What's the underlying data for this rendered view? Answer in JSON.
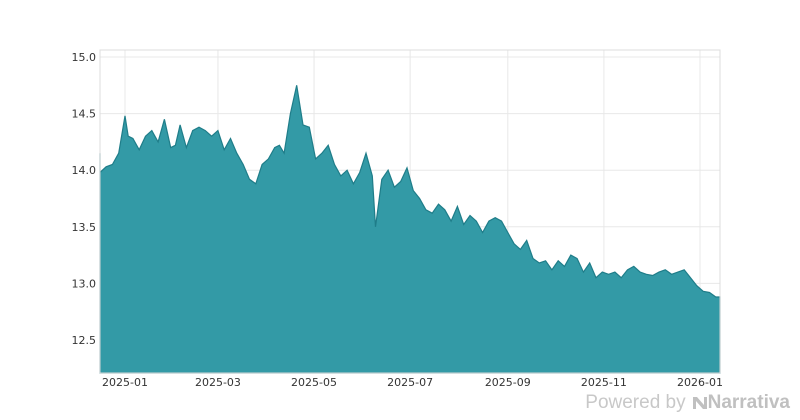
{
  "chart_data": {
    "type": "area",
    "title": "",
    "xlabel": "",
    "ylabel": "",
    "ylim": [
      12.2,
      15.05
    ],
    "grid": true,
    "legend": "none",
    "fill_color": "#339aa6",
    "line_color": "#1f7d89",
    "x_ticks": [
      "2025-01",
      "2025-03",
      "2025-05",
      "2025-07",
      "2025-09",
      "2025-11",
      "2026-01"
    ],
    "y_ticks": [
      "12.5",
      "13.0",
      "13.5",
      "14.0",
      "14.5",
      "15.0"
    ],
    "series": [
      {
        "name": "value",
        "x": [
          "2024-12-08",
          "2024-12-12",
          "2024-12-16",
          "2024-12-20",
          "2024-12-24",
          "2024-12-28",
          "2025-01-01",
          "2025-01-03",
          "2025-01-06",
          "2025-01-10",
          "2025-01-14",
          "2025-01-18",
          "2025-01-22",
          "2025-01-26",
          "2025-01-30",
          "2025-02-02",
          "2025-02-05",
          "2025-02-09",
          "2025-02-13",
          "2025-02-17",
          "2025-02-21",
          "2025-02-25",
          "2025-03-01",
          "2025-03-05",
          "2025-03-09",
          "2025-03-13",
          "2025-03-17",
          "2025-03-21",
          "2025-03-25",
          "2025-03-29",
          "2025-04-02",
          "2025-04-06",
          "2025-04-09",
          "2025-04-12",
          "2025-04-16",
          "2025-04-20",
          "2025-04-24",
          "2025-04-28",
          "2025-05-02",
          "2025-05-06",
          "2025-05-10",
          "2025-05-14",
          "2025-05-18",
          "2025-05-22",
          "2025-05-26",
          "2025-05-30",
          "2025-06-03",
          "2025-06-07",
          "2025-06-09",
          "2025-06-13",
          "2025-06-17",
          "2025-06-21",
          "2025-06-25",
          "2025-06-29",
          "2025-07-03",
          "2025-07-07",
          "2025-07-11",
          "2025-07-15",
          "2025-07-19",
          "2025-07-23",
          "2025-07-27",
          "2025-07-31",
          "2025-08-04",
          "2025-08-08",
          "2025-08-12",
          "2025-08-16",
          "2025-08-20",
          "2025-08-24",
          "2025-08-28",
          "2025-09-01",
          "2025-09-05",
          "2025-09-09",
          "2025-09-13",
          "2025-09-17",
          "2025-09-21",
          "2025-09-25",
          "2025-09-29",
          "2025-10-03",
          "2025-10-07",
          "2025-10-11",
          "2025-10-15",
          "2025-10-19",
          "2025-10-23",
          "2025-10-27",
          "2025-10-31",
          "2025-11-04",
          "2025-11-08",
          "2025-11-12",
          "2025-11-16",
          "2025-11-20",
          "2025-11-24",
          "2025-11-28",
          "2025-12-02",
          "2025-12-06",
          "2025-12-10",
          "2025-12-14",
          "2025-12-18",
          "2025-12-22",
          "2025-12-26",
          "2025-12-30",
          "2026-01-03",
          "2026-01-07",
          "2026-01-11"
        ],
        "values": [
          14.15,
          14.1,
          13.98,
          14.03,
          14.05,
          14.15,
          14.48,
          14.3,
          14.28,
          14.18,
          14.3,
          14.35,
          14.25,
          14.45,
          14.2,
          14.22,
          14.4,
          14.2,
          14.35,
          14.38,
          14.35,
          14.3,
          14.35,
          14.18,
          14.28,
          14.15,
          14.05,
          13.92,
          13.88,
          14.05,
          14.1,
          14.2,
          14.22,
          14.15,
          14.5,
          14.75,
          14.4,
          14.38,
          14.1,
          14.15,
          14.22,
          14.05,
          13.95,
          14.0,
          13.88,
          13.98,
          14.15,
          13.95,
          13.5,
          13.92,
          14.0,
          13.85,
          13.9,
          14.02,
          13.82,
          13.75,
          13.65,
          13.62,
          13.7,
          13.65,
          13.55,
          13.68,
          13.52,
          13.6,
          13.55,
          13.45,
          13.55,
          13.58,
          13.55,
          13.45,
          13.35,
          13.3,
          13.38,
          13.22,
          13.18,
          13.2,
          13.12,
          13.2,
          13.15,
          13.25,
          13.22,
          13.1,
          13.18,
          13.05,
          13.1,
          13.08,
          13.1,
          13.05,
          13.12,
          13.15,
          13.1,
          13.08,
          13.07,
          13.1,
          13.12,
          13.08,
          13.1,
          13.12,
          13.05,
          12.98,
          12.93,
          12.92,
          12.88
        ]
      }
    ]
  },
  "footer": {
    "powered_by": "Powered by",
    "brand_name": "Narrativa",
    "brand_glyph": "↘"
  }
}
